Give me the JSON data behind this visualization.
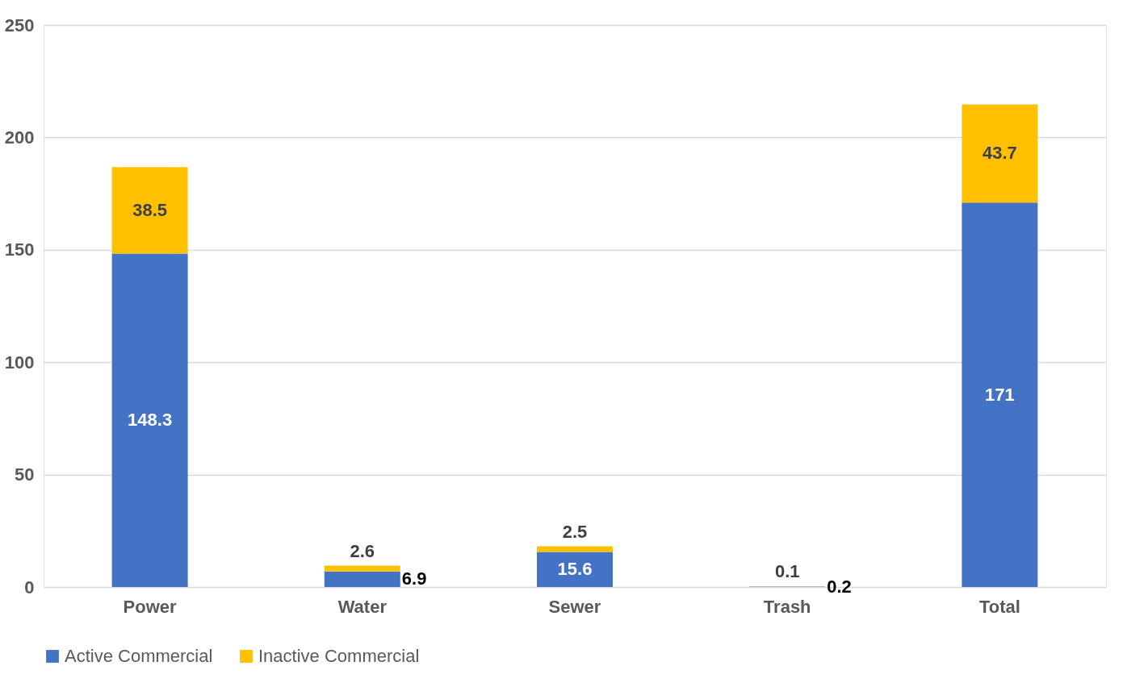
{
  "chart_data": {
    "type": "bar",
    "stacked": true,
    "categories": [
      "Power",
      "Water",
      "Sewer",
      "Trash",
      "Total"
    ],
    "series": [
      {
        "name": "Active Commercial",
        "color": "#4472c4",
        "values": [
          148.3,
          6.9,
          15.6,
          0.2,
          171
        ]
      },
      {
        "name": "Inactive Commercial",
        "color": "#ffc000",
        "values": [
          38.5,
          2.6,
          2.5,
          0.1,
          43.7
        ]
      }
    ],
    "ylim": [
      0,
      250
    ],
    "yticks": [
      0,
      50,
      100,
      150,
      200,
      250
    ],
    "grid": "y",
    "legend": "bottom",
    "data_labels": true
  }
}
